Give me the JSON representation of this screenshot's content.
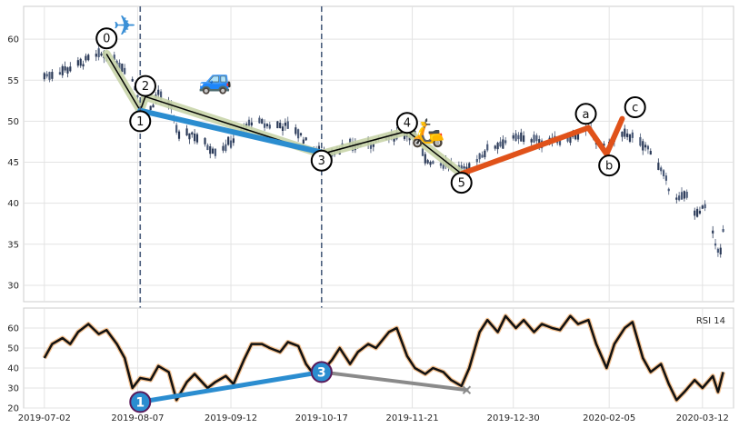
{
  "chart_data": [
    {
      "type": "candlestick",
      "panel": "price",
      "x_range": [
        "2019-06-24",
        "2020-03-24"
      ],
      "ylim": [
        28,
        64
      ],
      "yticks": [
        30,
        35,
        40,
        45,
        50,
        55,
        60
      ],
      "ytick_labels": [
        "30",
        "35",
        "40",
        "45",
        "50",
        "55",
        "60"
      ],
      "grid": true,
      "colors": {
        "up": "#4a5a78",
        "down": "#2b3a58",
        "bg": "#ffffff",
        "grid": "#e3e3e3"
      },
      "ohlc_anchors": [
        [
          "2019-07-02",
          55.5
        ],
        [
          "2019-07-09",
          56.2
        ],
        [
          "2019-07-15",
          56.8
        ],
        [
          "2019-07-19",
          57.5
        ],
        [
          "2019-07-25",
          58.2
        ],
        [
          "2019-07-30",
          57.2
        ],
        [
          "2019-08-02",
          56.5
        ],
        [
          "2019-08-05",
          55.0
        ],
        [
          "2019-08-08",
          52.5
        ],
        [
          "2019-08-12",
          51.5
        ],
        [
          "2019-08-15",
          53.5
        ],
        [
          "2019-08-20",
          51.5
        ],
        [
          "2019-08-23",
          48.0
        ],
        [
          "2019-08-28",
          48.5
        ],
        [
          "2019-09-03",
          47.0
        ],
        [
          "2019-09-06",
          46.5
        ],
        [
          "2019-09-10",
          47.0
        ],
        [
          "2019-09-16",
          48.5
        ],
        [
          "2019-09-20",
          50.0
        ],
        [
          "2019-09-26",
          49.5
        ],
        [
          "2019-10-01",
          49.5
        ],
        [
          "2019-10-07",
          49.0
        ],
        [
          "2019-10-11",
          47.5
        ],
        [
          "2019-10-17",
          46.0
        ],
        [
          "2019-10-22",
          46.5
        ],
        [
          "2019-10-28",
          47.0
        ],
        [
          "2019-11-04",
          47.2
        ],
        [
          "2019-11-11",
          47.8
        ],
        [
          "2019-11-18",
          48.5
        ],
        [
          "2019-11-22",
          48.2
        ],
        [
          "2019-11-26",
          45.2
        ],
        [
          "2019-12-02",
          45.0
        ],
        [
          "2019-12-07",
          44.7
        ],
        [
          "2019-12-12",
          43.8
        ],
        [
          "2019-12-16",
          45.5
        ],
        [
          "2019-12-20",
          46.5
        ],
        [
          "2019-12-26",
          47.5
        ],
        [
          "2020-01-03",
          48.0
        ],
        [
          "2020-01-10",
          47.5
        ],
        [
          "2020-01-17",
          47.8
        ],
        [
          "2020-01-24",
          48.5
        ],
        [
          "2020-01-28",
          49.0
        ],
        [
          "2020-01-31",
          47.5
        ],
        [
          "2020-02-04",
          46.5
        ],
        [
          "2020-02-07",
          47.5
        ],
        [
          "2020-02-12",
          48.5
        ],
        [
          "2020-02-14",
          48.0
        ],
        [
          "2020-02-18",
          47.0
        ],
        [
          "2020-02-21",
          46.5
        ],
        [
          "2020-02-25",
          44.0
        ],
        [
          "2020-02-28",
          42.0
        ],
        [
          "2020-03-03",
          40.5
        ],
        [
          "2020-03-06",
          41.0
        ],
        [
          "2020-03-10",
          38.5
        ],
        [
          "2020-03-13",
          39.5
        ],
        [
          "2020-03-17",
          35.0
        ],
        [
          "2020-03-19",
          34.0
        ],
        [
          "2020-03-20",
          36.5
        ]
      ],
      "wave_labels": [
        {
          "label": "0",
          "date": "2019-07-26",
          "y": 60.1
        },
        {
          "label": "1",
          "date": "2019-08-08",
          "y": 50.0
        },
        {
          "label": "2",
          "date": "2019-08-10",
          "y": 54.3
        },
        {
          "label": "3",
          "date": "2019-10-17",
          "y": 45.2
        },
        {
          "label": "4",
          "date": "2019-11-19",
          "y": 49.8
        },
        {
          "label": "5",
          "date": "2019-12-10",
          "y": 42.5
        },
        {
          "label": "a",
          "date": "2020-01-27",
          "y": 50.9
        },
        {
          "label": "b",
          "date": "2020-02-05",
          "y": 44.6
        },
        {
          "label": "c",
          "date": "2020-02-15",
          "y": 51.7
        }
      ],
      "impulse_wave": [
        [
          "2019-07-26",
          58.2
        ],
        [
          "2019-08-08",
          51.3
        ],
        [
          "2019-08-10",
          53.0
        ],
        [
          "2019-10-17",
          46.0
        ],
        [
          "2019-11-19",
          48.8
        ],
        [
          "2019-12-10",
          43.6
        ]
      ],
      "impulse_color": "#c8d4a8",
      "corrective_wave": [
        [
          "2019-12-10",
          43.6
        ],
        [
          "2020-01-28",
          49.2
        ],
        [
          "2020-02-04",
          46.0
        ],
        [
          "2020-02-10",
          50.3
        ]
      ],
      "corrective_color": "#e0521a",
      "trendline": [
        [
          "2019-08-08",
          51.3
        ],
        [
          "2019-10-17",
          46.2
        ]
      ],
      "trendline_color": "#2b8dd0",
      "vlines": [
        "2019-08-08",
        "2019-10-17"
      ],
      "icons": [
        {
          "glyph": "✈",
          "name": "airplane-icon",
          "date": "2019-08-02",
          "y": 60.5
        },
        {
          "glyph": "🚙",
          "name": "car-icon",
          "date": "2019-09-06",
          "y": 54.0
        },
        {
          "glyph": "🛵",
          "name": "scooter-icon",
          "date": "2019-11-27",
          "y": 47.5
        }
      ]
    },
    {
      "type": "line",
      "panel": "rsi",
      "legend": "RSI 14",
      "ylim": [
        20,
        70
      ],
      "yticks": [
        20,
        30,
        40,
        50,
        60
      ],
      "ytick_labels": [
        "20",
        "30",
        "40",
        "50",
        "60"
      ],
      "x_ticks": [
        "2019-07-02",
        "2019-08-07",
        "2019-09-12",
        "2019-10-17",
        "2019-11-21",
        "2019-12-30",
        "2020-02-05",
        "2020-03-12"
      ],
      "grid": true,
      "line_color": "#111111",
      "halo_color": "#f2c090",
      "values": [
        [
          "2019-07-02",
          45
        ],
        [
          "2019-07-05",
          52
        ],
        [
          "2019-07-09",
          55
        ],
        [
          "2019-07-12",
          52
        ],
        [
          "2019-07-15",
          58
        ],
        [
          "2019-07-19",
          62
        ],
        [
          "2019-07-23",
          57
        ],
        [
          "2019-07-26",
          59
        ],
        [
          "2019-07-30",
          52
        ],
        [
          "2019-08-02",
          45
        ],
        [
          "2019-08-05",
          30
        ],
        [
          "2019-08-08",
          35
        ],
        [
          "2019-08-12",
          34
        ],
        [
          "2019-08-15",
          41
        ],
        [
          "2019-08-19",
          38
        ],
        [
          "2019-08-22",
          24
        ],
        [
          "2019-08-26",
          33
        ],
        [
          "2019-08-29",
          37
        ],
        [
          "2019-09-03",
          30
        ],
        [
          "2019-09-06",
          33
        ],
        [
          "2019-09-10",
          36
        ],
        [
          "2019-09-13",
          32
        ],
        [
          "2019-09-17",
          44
        ],
        [
          "2019-09-20",
          52
        ],
        [
          "2019-09-24",
          52
        ],
        [
          "2019-09-27",
          50
        ],
        [
          "2019-10-01",
          48
        ],
        [
          "2019-10-04",
          53
        ],
        [
          "2019-10-08",
          51
        ],
        [
          "2019-10-11",
          42
        ],
        [
          "2019-10-15",
          35
        ],
        [
          "2019-10-17",
          38
        ],
        [
          "2019-10-21",
          44
        ],
        [
          "2019-10-24",
          50
        ],
        [
          "2019-10-28",
          42
        ],
        [
          "2019-10-31",
          48
        ],
        [
          "2019-11-04",
          52
        ],
        [
          "2019-11-07",
          50
        ],
        [
          "2019-11-12",
          58
        ],
        [
          "2019-11-15",
          60
        ],
        [
          "2019-11-19",
          46
        ],
        [
          "2019-11-22",
          40
        ],
        [
          "2019-11-26",
          37
        ],
        [
          "2019-11-29",
          40
        ],
        [
          "2019-12-03",
          38
        ],
        [
          "2019-12-06",
          34
        ],
        [
          "2019-12-10",
          31
        ],
        [
          "2019-12-13",
          40
        ],
        [
          "2019-12-17",
          58
        ],
        [
          "2019-12-20",
          64
        ],
        [
          "2019-12-24",
          58
        ],
        [
          "2019-12-27",
          66
        ],
        [
          "2019-12-31",
          60
        ],
        [
          "2020-01-03",
          64
        ],
        [
          "2020-01-07",
          58
        ],
        [
          "2020-01-10",
          62
        ],
        [
          "2020-01-14",
          60
        ],
        [
          "2020-01-17",
          59
        ],
        [
          "2020-01-21",
          66
        ],
        [
          "2020-01-24",
          62
        ],
        [
          "2020-01-28",
          64
        ],
        [
          "2020-01-31",
          52
        ],
        [
          "2020-02-04",
          40
        ],
        [
          "2020-02-07",
          52
        ],
        [
          "2020-02-11",
          60
        ],
        [
          "2020-02-14",
          63
        ],
        [
          "2020-02-18",
          45
        ],
        [
          "2020-02-21",
          38
        ],
        [
          "2020-02-25",
          42
        ],
        [
          "2020-02-28",
          32
        ],
        [
          "2020-03-02",
          24
        ],
        [
          "2020-03-05",
          28
        ],
        [
          "2020-03-09",
          34
        ],
        [
          "2020-03-12",
          30
        ],
        [
          "2020-03-16",
          36
        ],
        [
          "2020-03-18",
          28
        ],
        [
          "2020-03-20",
          38
        ]
      ],
      "divergence_markers": [
        {
          "label": "1",
          "date": "2019-08-08",
          "y": 23
        },
        {
          "label": "3",
          "date": "2019-10-17",
          "y": 38
        }
      ],
      "divergence_line": [
        [
          "2019-08-08",
          23
        ],
        [
          "2019-10-17",
          38
        ]
      ],
      "divergence_color": "#2b8dd0",
      "failed_line": [
        [
          "2019-10-17",
          38
        ],
        [
          "2019-12-12",
          29
        ]
      ],
      "failed_color": "#8a8a8a",
      "marker_fill": "#2b8dd0",
      "marker_edge": "#5a1a5a"
    }
  ]
}
